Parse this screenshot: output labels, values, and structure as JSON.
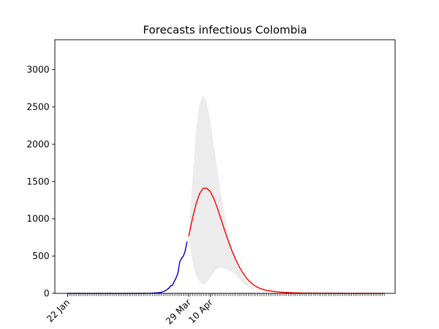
{
  "chart_data": {
    "type": "line",
    "title": "Forecasts infectious Colombia",
    "xlabel": "",
    "ylabel": "",
    "ylim": [
      0,
      3400
    ],
    "xlim": [
      "2020-01-15",
      "2020-07-21"
    ],
    "grid": false,
    "y_ticks": [
      0,
      500,
      1000,
      1500,
      2000,
      2500,
      3000
    ],
    "x_ticks": [
      {
        "date": "2020-01-22",
        "label": "22 Jan"
      },
      {
        "date": "2020-03-29",
        "label": "29 Mar"
      },
      {
        "date": "2020-04-10",
        "label": "10 Apr"
      }
    ],
    "minor_ticks": {
      "start": "2020-01-22",
      "end": "2020-07-15",
      "step_days": 1
    },
    "band": {
      "color": "#ececec",
      "points": [
        {
          "x": "2020-03-29",
          "lower": 740,
          "upper": 780
        },
        {
          "x": "2020-03-31",
          "lower": 420,
          "upper": 1500
        },
        {
          "x": "2020-04-02",
          "lower": 230,
          "upper": 2200
        },
        {
          "x": "2020-04-04",
          "lower": 150,
          "upper": 2550
        },
        {
          "x": "2020-04-06",
          "lower": 120,
          "upper": 2660
        },
        {
          "x": "2020-04-08",
          "lower": 150,
          "upper": 2560
        },
        {
          "x": "2020-04-10",
          "lower": 220,
          "upper": 2300
        },
        {
          "x": "2020-04-12",
          "lower": 290,
          "upper": 1960
        },
        {
          "x": "2020-04-14",
          "lower": 335,
          "upper": 1620
        },
        {
          "x": "2020-04-16",
          "lower": 345,
          "upper": 1300
        },
        {
          "x": "2020-04-18",
          "lower": 335,
          "upper": 1020
        },
        {
          "x": "2020-04-20",
          "lower": 310,
          "upper": 790
        },
        {
          "x": "2020-04-22",
          "lower": 280,
          "upper": 600
        },
        {
          "x": "2020-04-24",
          "lower": 240,
          "upper": 450
        },
        {
          "x": "2020-04-26",
          "lower": 190,
          "upper": 330
        },
        {
          "x": "2020-04-28",
          "lower": 140,
          "upper": 230
        },
        {
          "x": "2020-04-30",
          "lower": 100,
          "upper": 160
        },
        {
          "x": "2020-05-02",
          "lower": 70,
          "upper": 110
        },
        {
          "x": "2020-05-04",
          "lower": 50,
          "upper": 75
        }
      ]
    },
    "series": [
      {
        "color": "#0000cc",
        "x": [
          "2020-01-22",
          "2020-02-15",
          "2020-03-01",
          "2020-03-08",
          "2020-03-12",
          "2020-03-14",
          "2020-03-16",
          "2020-03-18",
          "2020-03-19",
          "2020-03-20",
          "2020-03-21",
          "2020-03-22",
          "2020-03-23",
          "2020-03-24",
          "2020-03-25",
          "2020-03-26",
          "2020-03-27",
          "2020-03-28"
        ],
        "values": [
          0,
          0,
          0,
          2,
          8,
          15,
          35,
          70,
          100,
          110,
          160,
          210,
          270,
          420,
          470,
          500,
          570,
          690
        ]
      },
      {
        "color": "#ff0000",
        "x": [
          "2020-03-29",
          "2020-03-31",
          "2020-04-02",
          "2020-04-04",
          "2020-04-06",
          "2020-04-08",
          "2020-04-10",
          "2020-04-12",
          "2020-04-14",
          "2020-04-16",
          "2020-04-18",
          "2020-04-20",
          "2020-04-22",
          "2020-04-24",
          "2020-04-26",
          "2020-04-28",
          "2020-04-30",
          "2020-05-02",
          "2020-05-04",
          "2020-05-06",
          "2020-05-10",
          "2020-05-15",
          "2020-05-20",
          "2020-05-25",
          "2020-06-01",
          "2020-06-10",
          "2020-06-20",
          "2020-07-01",
          "2020-07-15"
        ],
        "values": [
          770,
          1000,
          1200,
          1340,
          1410,
          1410,
          1360,
          1260,
          1130,
          980,
          830,
          690,
          560,
          450,
          350,
          270,
          200,
          150,
          110,
          80,
          45,
          25,
          14,
          8,
          4,
          2,
          1,
          0,
          0
        ]
      }
    ]
  }
}
